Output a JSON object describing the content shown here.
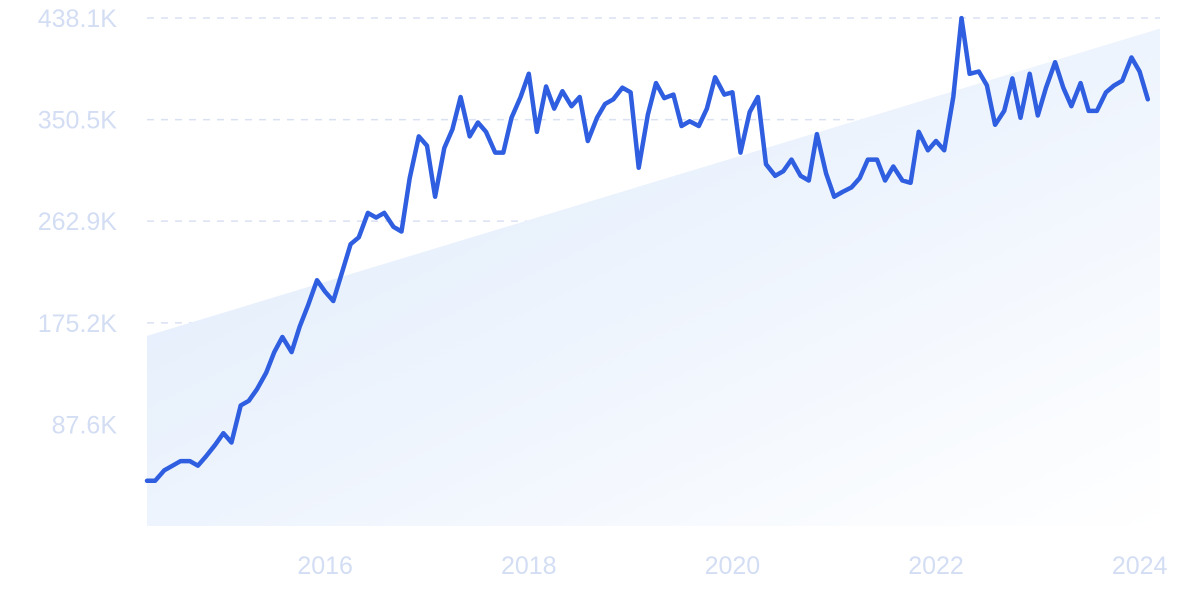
{
  "chart_data": {
    "type": "line",
    "title": "",
    "xlabel": "",
    "ylabel": "",
    "x_ticks": [
      2016,
      2018,
      2020,
      2022,
      2024
    ],
    "y_ticks": [
      {
        "value": 87600,
        "label": "87.6K"
      },
      {
        "value": 175200,
        "label": "175.2K"
      },
      {
        "value": 262900,
        "label": "262.9K"
      },
      {
        "value": 350500,
        "label": "350.5K"
      },
      {
        "value": 438100,
        "label": "438.1K"
      }
    ],
    "xlim": [
      2014.25,
      2024.2
    ],
    "ylim": [
      0,
      438100
    ],
    "grid": true,
    "legend": "none",
    "colors": {
      "line": "#2f5fe0",
      "trend_fill_top": "#dce9fb",
      "trend_fill_bottom": "#ffffff",
      "grid": "#d9e1f2",
      "tick_text": "#d3ddf3"
    },
    "trend": {
      "x": [
        2014.25,
        2024.2
      ],
      "y": [
        164000,
        429000
      ]
    },
    "series": [
      {
        "x": [
          2014.25,
          2014.33,
          2014.42,
          2014.5,
          2014.58,
          2014.67,
          2014.75,
          2014.83,
          2014.92,
          2015.0,
          2015.08,
          2015.17,
          2015.25,
          2015.33,
          2015.42,
          2015.5,
          2015.58,
          2015.67,
          2015.75,
          2015.83,
          2015.92,
          2016.0,
          2016.08,
          2016.17,
          2016.25,
          2016.33,
          2016.42,
          2016.5,
          2016.58,
          2016.67,
          2016.75,
          2016.83,
          2016.92,
          2017.0,
          2017.08,
          2017.17,
          2017.25,
          2017.33,
          2017.42,
          2017.5,
          2017.58,
          2017.67,
          2017.75,
          2017.83,
          2017.92,
          2018.0,
          2018.08,
          2018.17,
          2018.25,
          2018.33,
          2018.42,
          2018.5,
          2018.58,
          2018.67,
          2018.75,
          2018.83,
          2018.92,
          2019.0,
          2019.08,
          2019.17,
          2019.25,
          2019.33,
          2019.42,
          2019.5,
          2019.58,
          2019.67,
          2019.75,
          2019.83,
          2019.92,
          2020.0,
          2020.08,
          2020.17,
          2020.25,
          2020.33,
          2020.42,
          2020.5,
          2020.58,
          2020.67,
          2020.75,
          2020.83,
          2020.92,
          2021.0,
          2021.08,
          2021.17,
          2021.25,
          2021.33,
          2021.42,
          2021.5,
          2021.58,
          2021.67,
          2021.75,
          2021.83,
          2021.92,
          2022.0,
          2022.08,
          2022.17,
          2022.25,
          2022.33,
          2022.42,
          2022.5,
          2022.58,
          2022.67,
          2022.75,
          2022.83,
          2022.92,
          2023.0,
          2023.08,
          2023.17,
          2023.25,
          2023.33,
          2023.42,
          2023.5,
          2023.58,
          2023.67,
          2023.75,
          2023.83,
          2023.92,
          2024.0,
          2024.08
        ],
        "y": [
          39000,
          39000,
          48000,
          52000,
          56000,
          56000,
          52000,
          60000,
          70000,
          80000,
          72000,
          104000,
          108000,
          118000,
          132000,
          150000,
          163000,
          150000,
          172000,
          190000,
          212000,
          202000,
          194000,
          220000,
          243000,
          249000,
          270000,
          266000,
          270000,
          258000,
          254000,
          300000,
          336000,
          328000,
          284000,
          326000,
          342000,
          370000,
          336000,
          348000,
          340000,
          322000,
          322000,
          352000,
          370000,
          390000,
          340000,
          379000,
          360000,
          375000,
          362000,
          370000,
          332000,
          352000,
          364000,
          368000,
          378000,
          374000,
          309000,
          355000,
          382000,
          369000,
          372000,
          345000,
          349000,
          345000,
          360000,
          387000,
          372000,
          374000,
          322000,
          357000,
          370000,
          312000,
          302000,
          306000,
          316000,
          302000,
          298000,
          338000,
          304000,
          284000,
          288000,
          292000,
          300000,
          316000,
          316000,
          298000,
          310000,
          298000,
          296000,
          340000,
          324000,
          332000,
          324000,
          370000,
          438000,
          390000,
          392000,
          380000,
          346000,
          358000,
          386000,
          352000,
          390000,
          354000,
          378000,
          400000,
          378000,
          362000,
          382000,
          358000,
          358000,
          374000,
          380000,
          384000,
          404000,
          392000,
          368000
        ],
        "color": "#2f5fe0"
      }
    ]
  }
}
